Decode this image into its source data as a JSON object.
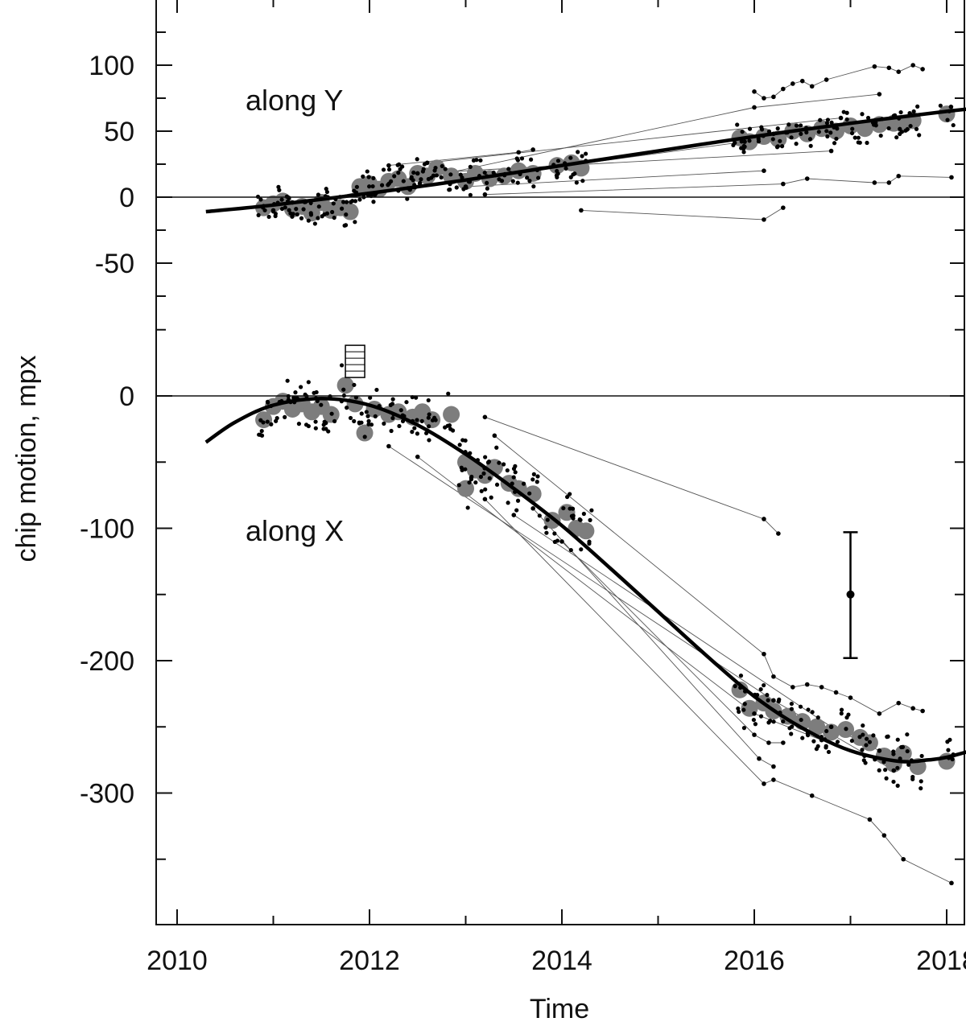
{
  "chart_data": {
    "type": "scatter",
    "xlabel": "Time",
    "ylabel": "chip motion, mpx",
    "xlim": [
      2010,
      2019
    ],
    "x_ticks": [
      "2010",
      "2012",
      "2014",
      "2016",
      "2018"
    ],
    "grid": false,
    "panels": [
      {
        "label": "along Y",
        "ylim": [
          -75,
          150
        ],
        "y_ticks": [
          "100",
          "50",
          "0",
          "-50"
        ],
        "zero_line": 0,
        "fit_curve": [
          [
            2010.3,
            -11
          ],
          [
            2011,
            -6
          ],
          [
            2012,
            3
          ],
          [
            2013,
            13
          ],
          [
            2014,
            24
          ],
          [
            2015,
            35
          ],
          [
            2016,
            46
          ],
          [
            2017,
            56
          ],
          [
            2018,
            65
          ],
          [
            2018.4,
            68
          ]
        ],
        "binned_means": [
          [
            2010.9,
            -8
          ],
          [
            2011.0,
            -5
          ],
          [
            2011.1,
            -3
          ],
          [
            2011.2,
            -9
          ],
          [
            2011.3,
            -7
          ],
          [
            2011.4,
            -12
          ],
          [
            2011.5,
            -4
          ],
          [
            2011.6,
            -10
          ],
          [
            2011.7,
            -8
          ],
          [
            2011.8,
            -11
          ],
          [
            2011.9,
            8
          ],
          [
            2012.0,
            10
          ],
          [
            2012.1,
            6
          ],
          [
            2012.2,
            12
          ],
          [
            2012.3,
            14
          ],
          [
            2012.4,
            8
          ],
          [
            2012.5,
            18
          ],
          [
            2012.6,
            16
          ],
          [
            2012.7,
            22
          ],
          [
            2012.85,
            16
          ],
          [
            2013.0,
            12
          ],
          [
            2013.1,
            18
          ],
          [
            2013.25,
            14
          ],
          [
            2013.4,
            16
          ],
          [
            2013.55,
            20
          ],
          [
            2013.7,
            18
          ],
          [
            2013.95,
            24
          ],
          [
            2014.1,
            26
          ],
          [
            2014.2,
            22
          ],
          [
            2015.85,
            45
          ],
          [
            2015.95,
            42
          ],
          [
            2016.1,
            46
          ],
          [
            2016.25,
            44
          ],
          [
            2016.4,
            50
          ],
          [
            2016.55,
            48
          ],
          [
            2016.7,
            52
          ],
          [
            2016.85,
            50
          ],
          [
            2017.0,
            54
          ],
          [
            2017.15,
            52
          ],
          [
            2017.3,
            55
          ],
          [
            2017.45,
            56
          ],
          [
            2017.55,
            55
          ],
          [
            2017.65,
            58
          ],
          [
            2018.0,
            63
          ]
        ],
        "tracks": [
          [
            [
              2016.0,
              80
            ],
            [
              2016.1,
              75
            ],
            [
              2016.2,
              76
            ],
            [
              2016.3,
              82
            ],
            [
              2016.4,
              86
            ],
            [
              2016.5,
              88
            ],
            [
              2016.6,
              84
            ],
            [
              2016.75,
              89
            ],
            [
              2017.25,
              99
            ],
            [
              2017.4,
              98
            ],
            [
              2017.5,
              95
            ],
            [
              2017.65,
              100
            ],
            [
              2017.75,
              97
            ]
          ],
          [
            [
              2011.0,
              -10
            ],
            [
              2016.0,
              68
            ],
            [
              2017.3,
              78
            ]
          ],
          [
            [
              2012.3,
              5
            ],
            [
              2016.2,
              48
            ]
          ],
          [
            [
              2013.2,
              2
            ],
            [
              2016.3,
              10
            ],
            [
              2016.55,
              14
            ],
            [
              2017.25,
              11
            ],
            [
              2017.4,
              11
            ],
            [
              2017.5,
              16
            ],
            [
              2018.05,
              15
            ]
          ],
          [
            [
              2013.0,
              8
            ],
            [
              2016.1,
              20
            ]
          ],
          [
            [
              2014.2,
              -10
            ],
            [
              2016.1,
              -17
            ],
            [
              2016.3,
              -8
            ]
          ],
          [
            [
              2012.2,
              24
            ],
            [
              2013.55,
              34
            ],
            [
              2013.7,
              36
            ]
          ],
          [
            [
              2011.2,
              -4
            ],
            [
              2015.9,
              42
            ]
          ],
          [
            [
              2012.5,
              18
            ],
            [
              2016.8,
              35
            ]
          ],
          [
            [
              2012.6,
              26
            ],
            [
              2016.9,
              60
            ]
          ]
        ]
      },
      {
        "label": "along X",
        "ylim": [
          -400,
          60
        ],
        "y_ticks": [
          "0",
          "-100",
          "-200",
          "-300"
        ],
        "zero_line": 0,
        "fit_curve": [
          [
            2010.3,
            -35
          ],
          [
            2010.6,
            -20
          ],
          [
            2011.0,
            -7
          ],
          [
            2011.5,
            -2
          ],
          [
            2012.0,
            -7
          ],
          [
            2012.5,
            -22
          ],
          [
            2013.0,
            -44
          ],
          [
            2013.5,
            -70
          ],
          [
            2014.0,
            -98
          ],
          [
            2014.5,
            -130
          ],
          [
            2015.0,
            -163
          ],
          [
            2015.5,
            -196
          ],
          [
            2016.0,
            -227
          ],
          [
            2016.5,
            -251
          ],
          [
            2017.0,
            -268
          ],
          [
            2017.5,
            -276
          ],
          [
            2017.8,
            -275
          ],
          [
            2018.0,
            -273
          ],
          [
            2018.4,
            -265
          ]
        ],
        "binned_means": [
          [
            2010.9,
            -18
          ],
          [
            2011.0,
            -8
          ],
          [
            2011.1,
            -4
          ],
          [
            2011.2,
            -10
          ],
          [
            2011.3,
            -6
          ],
          [
            2011.4,
            -12
          ],
          [
            2011.5,
            -8
          ],
          [
            2011.6,
            -14
          ],
          [
            2011.75,
            8
          ],
          [
            2011.85,
            -6
          ],
          [
            2011.95,
            -28
          ],
          [
            2012.05,
            -10
          ],
          [
            2012.2,
            -14
          ],
          [
            2012.3,
            -12
          ],
          [
            2012.45,
            -16
          ],
          [
            2012.55,
            -12
          ],
          [
            2012.65,
            -18
          ],
          [
            2012.85,
            -14
          ],
          [
            2013.0,
            -50
          ],
          [
            2013.1,
            -56
          ],
          [
            2013.2,
            -60
          ],
          [
            2013.3,
            -54
          ],
          [
            2013.45,
            -66
          ],
          [
            2013.55,
            -70
          ],
          [
            2013.7,
            -74
          ],
          [
            2013.0,
            -70
          ],
          [
            2013.9,
            -94
          ],
          [
            2014.05,
            -88
          ],
          [
            2014.15,
            -100
          ],
          [
            2014.25,
            -102
          ],
          [
            2015.85,
            -222
          ],
          [
            2015.95,
            -236
          ],
          [
            2016.1,
            -232
          ],
          [
            2016.2,
            -238
          ],
          [
            2016.35,
            -242
          ],
          [
            2016.5,
            -246
          ],
          [
            2016.65,
            -250
          ],
          [
            2016.8,
            -254
          ],
          [
            2016.95,
            -252
          ],
          [
            2017.1,
            -258
          ],
          [
            2017.2,
            -262
          ],
          [
            2017.35,
            -272
          ],
          [
            2017.45,
            -278
          ],
          [
            2017.55,
            -270
          ],
          [
            2017.7,
            -280
          ],
          [
            2018.0,
            -276
          ]
        ],
        "tracks": [
          [
            [
              2013.2,
              -16
            ],
            [
              2016.1,
              -93
            ],
            [
              2016.25,
              -104
            ]
          ],
          [
            [
              2013.3,
              -30
            ],
            [
              2016.1,
              -195
            ],
            [
              2016.2,
              -212
            ],
            [
              2016.4,
              -220
            ],
            [
              2016.55,
              -218
            ],
            [
              2016.7,
              -220
            ],
            [
              2016.85,
              -224
            ],
            [
              2017.0,
              -228
            ],
            [
              2017.3,
              -240
            ],
            [
              2017.5,
              -232
            ],
            [
              2017.65,
              -236
            ],
            [
              2017.75,
              -238
            ]
          ],
          [
            [
              2014.0,
              -110
            ],
            [
              2016.0,
              -256
            ],
            [
              2016.15,
              -262
            ],
            [
              2016.3,
              -262
            ]
          ],
          [
            [
              2013.7,
              -85
            ],
            [
              2016.05,
              -274
            ],
            [
              2016.2,
              -280
            ]
          ],
          [
            [
              2013.2,
              -78
            ],
            [
              2016.1,
              -293
            ],
            [
              2016.2,
              -290
            ],
            [
              2016.6,
              -302
            ],
            [
              2017.2,
              -320
            ],
            [
              2017.35,
              -332
            ],
            [
              2017.55,
              -350
            ],
            [
              2018.05,
              -368
            ]
          ],
          [
            [
              2012.2,
              -38
            ],
            [
              2016.2,
              -230
            ],
            [
              2017.45,
              -283
            ]
          ],
          [
            [
              2013.5,
              -90
            ],
            [
              2016.8,
              -250
            ],
            [
              2017.3,
              -268
            ]
          ],
          [
            [
              2012.5,
              -46
            ],
            [
              2016.0,
              -240
            ],
            [
              2016.7,
              -260
            ]
          ]
        ],
        "error_bar": {
          "x": 2017.0,
          "y": -150,
          "low": -198,
          "high": -103
        },
        "legend_box": {
          "x": 2011.85,
          "y": 20
        }
      }
    ]
  }
}
